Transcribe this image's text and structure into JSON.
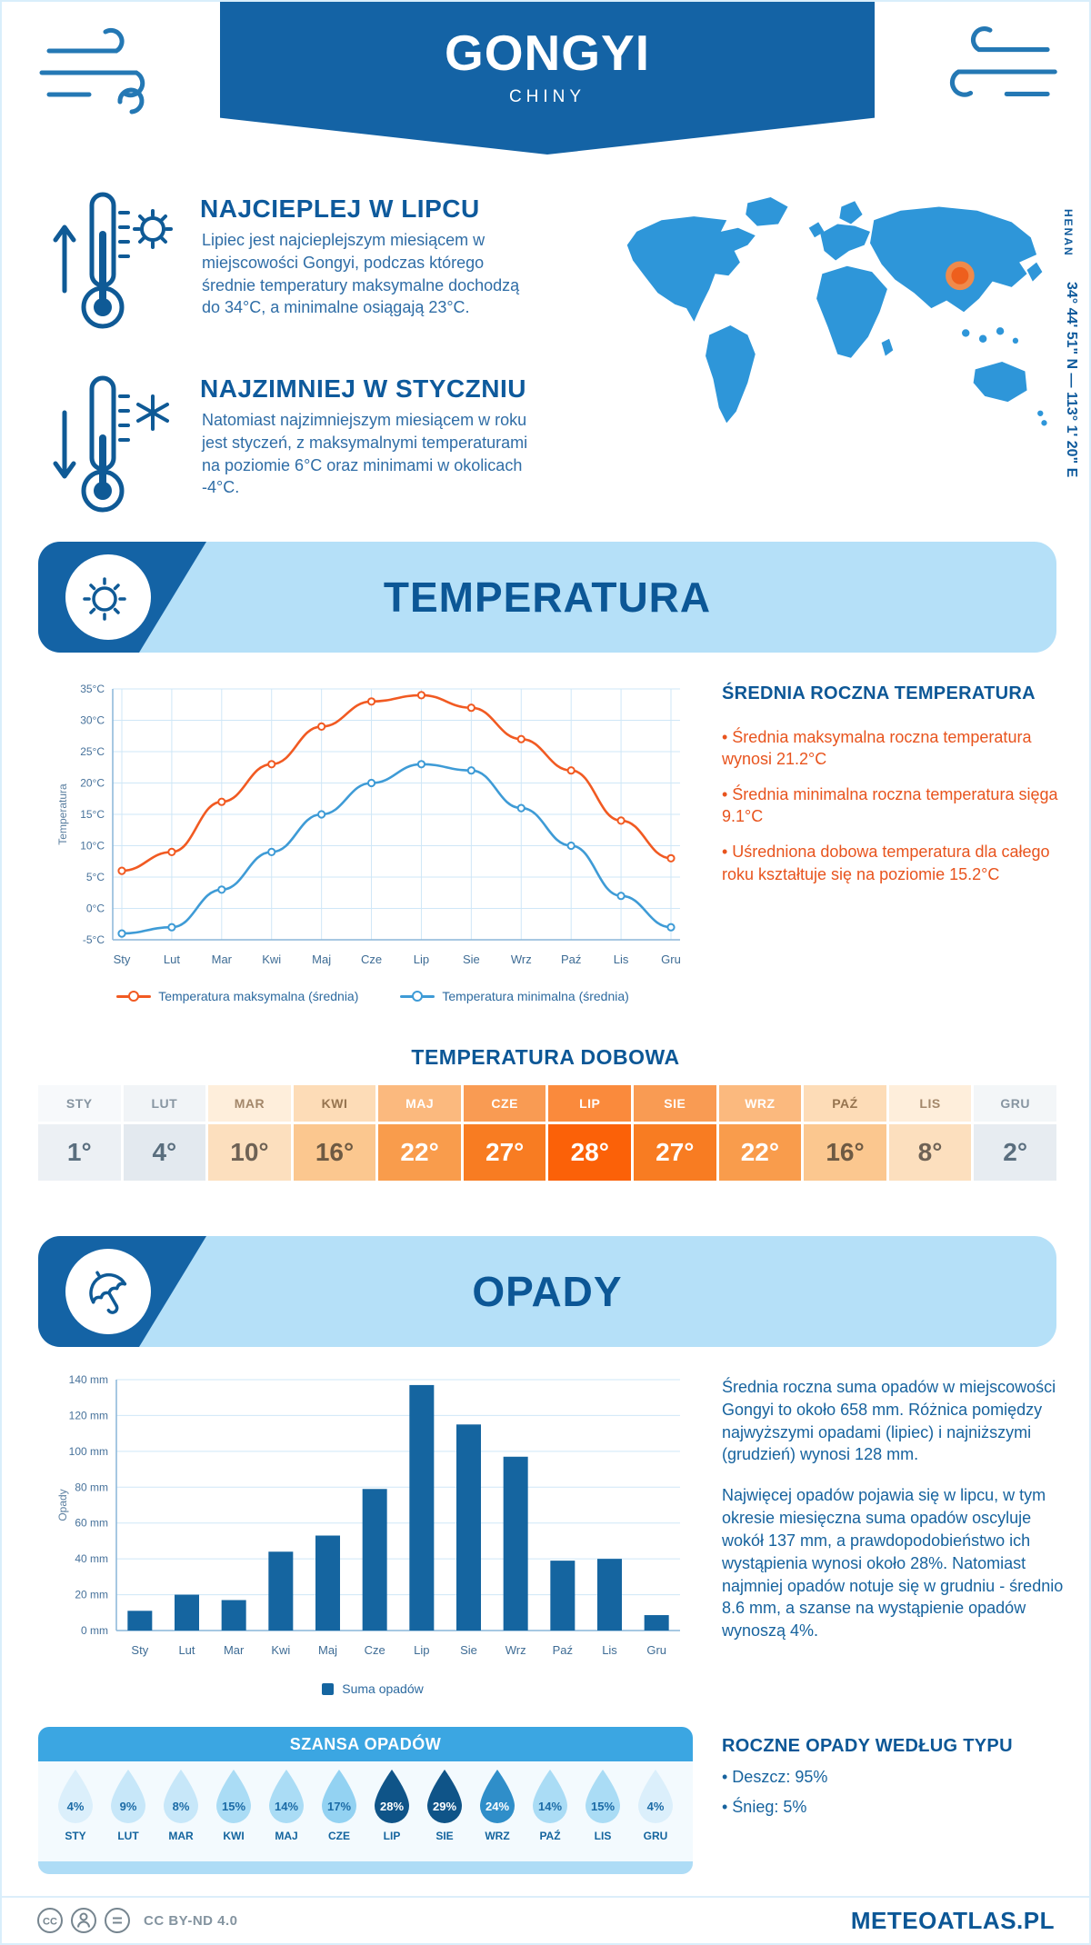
{
  "page": {
    "title": "GONGYI",
    "subtitle": "CHINY",
    "footer_license": "CC BY-ND 4.0",
    "footer_brand": "METEOATLAS.PL"
  },
  "intro": {
    "warm": {
      "heading": "NAJCIEPLEJ W LIPCU",
      "text": "Lipiec jest najcieplejszym miesiącem w miejscowości Gongyi, podczas którego średnie temperatury maksymalne dochodzą do 34°C, a minimalne osiągają 23°C."
    },
    "cold": {
      "heading": "NAJZIMNIEJ W STYCZNIU",
      "text": "Natomiast najzimniejszym miesiącem w roku jest styczeń, z maksymalnymi temperaturami na poziomie 6°C oraz minimami w okolicach -4°C."
    },
    "map": {
      "region": "HENAN",
      "coordinates": "34° 44' 51\" N — 113° 1' 20\" E"
    }
  },
  "temperature": {
    "section_title": "TEMPERATURA",
    "summary_heading": "ŚREDNIA ROCZNA TEMPERATURA",
    "bullets": [
      "• Średnia maksymalna roczna temperatura wynosi 21.2°C",
      "• Średnia minimalna roczna temperatura sięga 9.1°C",
      "• Uśredniona dobowa temperatura dla całego roku kształtuje się na poziomie 15.2°C"
    ],
    "daily_heading": "TEMPERATURA DOBOWA"
  },
  "daily_table": {
    "cells": [
      {
        "month": "STY",
        "value": "1°",
        "header_bg": "#f7f9fb",
        "header_text": "#8795a1",
        "value_bg": "#ecf0f4",
        "value_text": "#5a6e7e"
      },
      {
        "month": "LUT",
        "value": "4°",
        "header_bg": "#f1f4f7",
        "header_text": "#8795a1",
        "value_bg": "#e3e9ef",
        "value_text": "#5a6e7e"
      },
      {
        "month": "MAR",
        "value": "10°",
        "header_bg": "#feeedb",
        "header_text": "#a3876a",
        "value_bg": "#fcdfbe",
        "value_text": "#6e6255"
      },
      {
        "month": "KWI",
        "value": "16°",
        "header_bg": "#fddcb7",
        "header_text": "#96744f",
        "value_bg": "#fbc78f",
        "value_text": "#6e5a43"
      },
      {
        "month": "MAJ",
        "value": "22°",
        "header_bg": "#fbb97e",
        "header_text": "#ffffff",
        "value_bg": "#f99c4c",
        "value_text": "#ffffff"
      },
      {
        "month": "CZE",
        "value": "27°",
        "header_bg": "#f99b53",
        "header_text": "#ffffff",
        "value_bg": "#f87c22",
        "value_text": "#ffffff"
      },
      {
        "month": "LIP",
        "value": "28°",
        "header_bg": "#fa8a3c",
        "header_text": "#ffffff",
        "value_bg": "#fb6108",
        "value_text": "#ffffff"
      },
      {
        "month": "SIE",
        "value": "27°",
        "header_bg": "#f99b53",
        "header_text": "#ffffff",
        "value_bg": "#f87c22",
        "value_text": "#ffffff"
      },
      {
        "month": "WRZ",
        "value": "22°",
        "header_bg": "#fbb97e",
        "header_text": "#ffffff",
        "value_bg": "#f99c4c",
        "value_text": "#ffffff"
      },
      {
        "month": "PAŹ",
        "value": "16°",
        "header_bg": "#fddcb7",
        "header_text": "#96744f",
        "value_bg": "#fbc78f",
        "value_text": "#6e5a43"
      },
      {
        "month": "LIS",
        "value": "8°",
        "header_bg": "#feeedb",
        "header_text": "#a3876a",
        "value_bg": "#fcdfbe",
        "value_text": "#6e6255"
      },
      {
        "month": "GRU",
        "value": "2°",
        "header_bg": "#f3f6f8",
        "header_text": "#8795a1",
        "value_bg": "#e7ecf1",
        "value_text": "#5a6e7e"
      }
    ]
  },
  "precipitation": {
    "section_title": "OPADY",
    "paragraphs": [
      "Średnia roczna suma opadów w miejscowości Gongyi to około 658 mm. Różnica pomiędzy najwyższymi opadami (lipiec) i najniższymi (grudzień) wynosi 128 mm.",
      "Najwięcej opadów pojawia się w lipcu, w tym okresie miesięczna suma opadów oscyluje wokół 137 mm, a prawdopodobieństwo ich wystąpienia wynosi około 28%. Natomiast najmniej opadów notuje się w grudniu - średnio 8.6 mm, a szanse na wystąpienie opadów wynoszą 4%."
    ],
    "chance": {
      "heading": "SZANSA OPADÓW",
      "items": [
        {
          "month": "STY",
          "value": "4%",
          "fill": "#dbeffb",
          "text_color": "#1c6ba6"
        },
        {
          "month": "LUT",
          "value": "9%",
          "fill": "#c7e7f9",
          "text_color": "#1c6ba6"
        },
        {
          "month": "MAR",
          "value": "8%",
          "fill": "#c7e7f9",
          "text_color": "#1c6ba6"
        },
        {
          "month": "KWI",
          "value": "15%",
          "fill": "#aadcf5",
          "text_color": "#1c6ba6"
        },
        {
          "month": "MAJ",
          "value": "14%",
          "fill": "#aadcf5",
          "text_color": "#1c6ba6"
        },
        {
          "month": "CZE",
          "value": "17%",
          "fill": "#93d2f2",
          "text_color": "#1c6ba6"
        },
        {
          "month": "LIP",
          "value": "28%",
          "fill": "#0f5488",
          "text_color": "#ffffff"
        },
        {
          "month": "SIE",
          "value": "29%",
          "fill": "#0f5488",
          "text_color": "#ffffff"
        },
        {
          "month": "WRZ",
          "value": "24%",
          "fill": "#2f8ec9",
          "text_color": "#ffffff"
        },
        {
          "month": "PAŹ",
          "value": "14%",
          "fill": "#aadcf5",
          "text_color": "#1c6ba6"
        },
        {
          "month": "LIS",
          "value": "15%",
          "fill": "#aadcf5",
          "text_color": "#1c6ba6"
        },
        {
          "month": "GRU",
          "value": "4%",
          "fill": "#dbeffb",
          "text_color": "#1c6ba6"
        }
      ]
    },
    "by_type": {
      "heading": "ROCZNE OPADY WEDŁUG TYPU",
      "bullets": [
        "• Deszcz: 95%",
        "• Śnieg: 5%"
      ]
    }
  },
  "chart_data": [
    {
      "type": "line",
      "title": "TEMPERATURA",
      "x": [
        "Sty",
        "Lut",
        "Mar",
        "Kwi",
        "Maj",
        "Cze",
        "Lip",
        "Sie",
        "Wrz",
        "Paź",
        "Lis",
        "Gru"
      ],
      "ylabel": "Temperatura",
      "ylim": [
        -5,
        35
      ],
      "ystep": 5,
      "unit": "°C",
      "grid": true,
      "legend_position": "bottom",
      "series": [
        {
          "name": "Temperatura maksymalna (średnia)",
          "color": "#f15a22",
          "values": [
            6,
            9,
            17,
            23,
            29,
            33,
            34,
            32,
            27,
            22,
            14,
            8
          ]
        },
        {
          "name": "Temperatura minimalna (średnia)",
          "color": "#3e9bd6",
          "values": [
            -4,
            -3,
            3,
            9,
            15,
            20,
            23,
            22,
            16,
            10,
            2,
            -3
          ]
        }
      ]
    },
    {
      "type": "bar",
      "title": "OPADY",
      "x": [
        "Sty",
        "Lut",
        "Mar",
        "Kwi",
        "Maj",
        "Cze",
        "Lip",
        "Sie",
        "Wrz",
        "Paź",
        "Lis",
        "Gru"
      ],
      "ylabel": "Opady",
      "ylim": [
        0,
        140
      ],
      "ystep": 20,
      "unit": " mm",
      "grid": true,
      "legend_position": "bottom",
      "series": [
        {
          "name": "Suma opadów",
          "color": "#1565a0",
          "values": [
            11,
            20,
            17,
            44,
            53,
            79,
            137,
            115,
            97,
            39,
            40,
            8.6
          ]
        }
      ]
    }
  ],
  "colors": {
    "banner_blue": "#1463a5",
    "band_light_blue": "#b5e0f8",
    "heading_blue": "#0c5796",
    "accent_orange": "#e8541e",
    "map_blue": "#2e96d9",
    "marker_orange": "#ee5f1d"
  }
}
